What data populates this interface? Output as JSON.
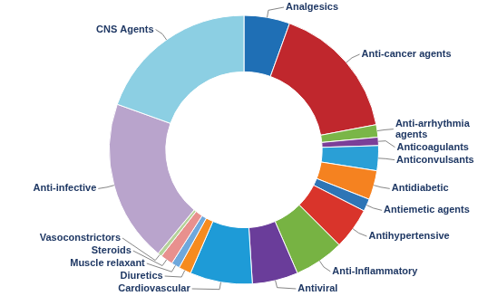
{
  "chart_data": {
    "type": "doughnut",
    "categories": [
      "Analgesics",
      "Anti-cancer agents",
      "Anti-arrhythmia agents",
      "Anticoagulants",
      "Anticonvulsants",
      "Antidiabetic",
      "Antiemetic agents",
      "Antihypertensive",
      "Anti-Inflammatory",
      "Antiviral",
      "Cardiovascular",
      "Diuretics",
      "Muscle relaxant",
      "Steroids",
      "Vasoconstrictors",
      "Anti-infective",
      "CNS Agents"
    ],
    "values": [
      5.5,
      16.5,
      1.5,
      1,
      3,
      3.5,
      1.5,
      5,
      6,
      5.5,
      7.5,
      1.5,
      1,
      1.5,
      0.5,
      19.5,
      19.5
    ],
    "colors": [
      "#1f6fb5",
      "#c0272d",
      "#7ab648",
      "#7b3f98",
      "#2a9fd6",
      "#f58220",
      "#2e75b6",
      "#d9342b",
      "#77b343",
      "#6a3d9a",
      "#1e9bd7",
      "#f68b1f",
      "#6fa8dc",
      "#e8908e",
      "#b5d29a",
      "#b9a4cc",
      "#8ccfe3"
    ]
  }
}
